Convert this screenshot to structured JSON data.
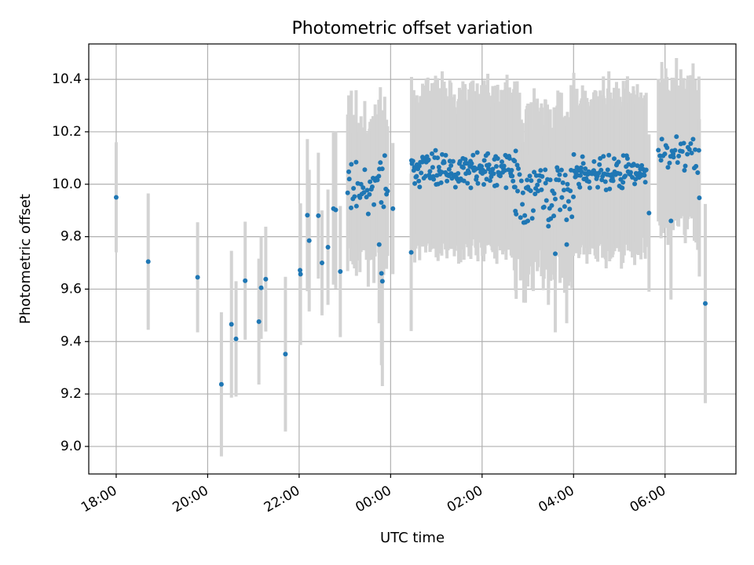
{
  "chart_data": {
    "type": "scatter",
    "title": "Photometric offset variation",
    "xlabel": "UTC time",
    "ylabel": "Photometric offset",
    "x_unit": "hours since 18:00 UTC",
    "xlim": [
      -0.6,
      13.55
    ],
    "ylim": [
      8.895,
      10.535
    ],
    "grid": true,
    "x_ticks": [
      {
        "value": 0,
        "label": "18:00"
      },
      {
        "value": 2,
        "label": "20:00"
      },
      {
        "value": 4,
        "label": "22:00"
      },
      {
        "value": 6,
        "label": "00:00"
      },
      {
        "value": 8,
        "label": "02:00"
      },
      {
        "value": 10,
        "label": "04:00"
      },
      {
        "value": 12,
        "label": "06:00"
      }
    ],
    "y_ticks": [
      {
        "value": 9.0,
        "label": "9.0"
      },
      {
        "value": 9.2,
        "label": "9.2"
      },
      {
        "value": 9.4,
        "label": "9.4"
      },
      {
        "value": 9.6,
        "label": "9.6"
      },
      {
        "value": 9.8,
        "label": "9.8"
      },
      {
        "value": 10.0,
        "label": "10.0"
      },
      {
        "value": 10.2,
        "label": "10.2"
      },
      {
        "value": 10.4,
        "label": "10.4"
      }
    ],
    "point_color": "#1f77b4",
    "errorbar_color": "#d3d3d3",
    "sparse_points": [
      {
        "x": 0.0,
        "y": 9.95,
        "err": 0.21
      },
      {
        "x": 0.7,
        "y": 9.705,
        "err": 0.26
      },
      {
        "x": 1.78,
        "y": 9.645,
        "err": 0.21
      },
      {
        "x": 2.3,
        "y": 9.237,
        "err": 0.275
      },
      {
        "x": 2.52,
        "y": 9.466,
        "err": 0.28
      },
      {
        "x": 2.62,
        "y": 9.41,
        "err": 0.22
      },
      {
        "x": 2.82,
        "y": 9.632,
        "err": 0.225
      },
      {
        "x": 3.12,
        "y": 9.476,
        "err": 0.24
      },
      {
        "x": 3.17,
        "y": 9.605,
        "err": 0.195
      },
      {
        "x": 3.27,
        "y": 9.638,
        "err": 0.2
      },
      {
        "x": 3.7,
        "y": 9.352,
        "err": 0.295
      },
      {
        "x": 4.02,
        "y": 9.672,
        "err": 0.23
      },
      {
        "x": 4.03,
        "y": 9.657,
        "err": 0.27
      },
      {
        "x": 4.18,
        "y": 9.882,
        "err": 0.29
      },
      {
        "x": 4.22,
        "y": 9.785,
        "err": 0.27
      },
      {
        "x": 4.42,
        "y": 9.88,
        "err": 0.24
      },
      {
        "x": 4.5,
        "y": 9.7,
        "err": 0.2
      },
      {
        "x": 4.63,
        "y": 9.76,
        "err": 0.22
      },
      {
        "x": 4.75,
        "y": 9.907,
        "err": 0.29
      },
      {
        "x": 4.8,
        "y": 9.902,
        "err": 0.3
      },
      {
        "x": 4.9,
        "y": 9.667,
        "err": 0.25
      }
    ],
    "dense_segments": [
      {
        "x_start": 5.05,
        "x_end": 5.95,
        "y_mean": 9.99,
        "y_spread": 0.09,
        "err_min": 0.2,
        "err_max": 0.3,
        "count": 40
      },
      {
        "x_start": 6.45,
        "x_end": 8.75,
        "y_mean": 10.06,
        "y_spread": 0.05,
        "err_min": 0.24,
        "err_max": 0.32,
        "count": 150
      },
      {
        "x_start": 8.7,
        "x_end": 10.0,
        "y_mean": 9.97,
        "y_spread": 0.09,
        "err_min": 0.22,
        "err_max": 0.33,
        "count": 70
      },
      {
        "x_start": 10.0,
        "x_end": 11.6,
        "y_mean": 10.04,
        "y_spread": 0.05,
        "err_min": 0.24,
        "err_max": 0.32,
        "count": 100
      },
      {
        "x_start": 11.85,
        "x_end": 12.75,
        "y_mean": 10.12,
        "y_spread": 0.05,
        "err_min": 0.24,
        "err_max": 0.3,
        "count": 35
      }
    ],
    "notable_points": [
      {
        "x": 5.75,
        "y": 9.77,
        "err": 0.3
      },
      {
        "x": 5.8,
        "y": 9.66,
        "err": 0.35
      },
      {
        "x": 5.82,
        "y": 9.63,
        "err": 0.4
      },
      {
        "x": 6.05,
        "y": 9.907,
        "err": 0.25
      },
      {
        "x": 6.45,
        "y": 9.74,
        "err": 0.3
      },
      {
        "x": 9.0,
        "y": 9.86,
        "err": 0.25
      },
      {
        "x": 9.45,
        "y": 9.84,
        "err": 0.3
      },
      {
        "x": 9.6,
        "y": 9.735,
        "err": 0.3
      },
      {
        "x": 9.85,
        "y": 9.77,
        "err": 0.3
      },
      {
        "x": 11.65,
        "y": 9.89,
        "err": 0.3
      },
      {
        "x": 12.13,
        "y": 9.86,
        "err": 0.3
      },
      {
        "x": 12.75,
        "y": 9.948,
        "err": 0.3
      },
      {
        "x": 12.88,
        "y": 9.545,
        "err": 0.38
      }
    ]
  }
}
